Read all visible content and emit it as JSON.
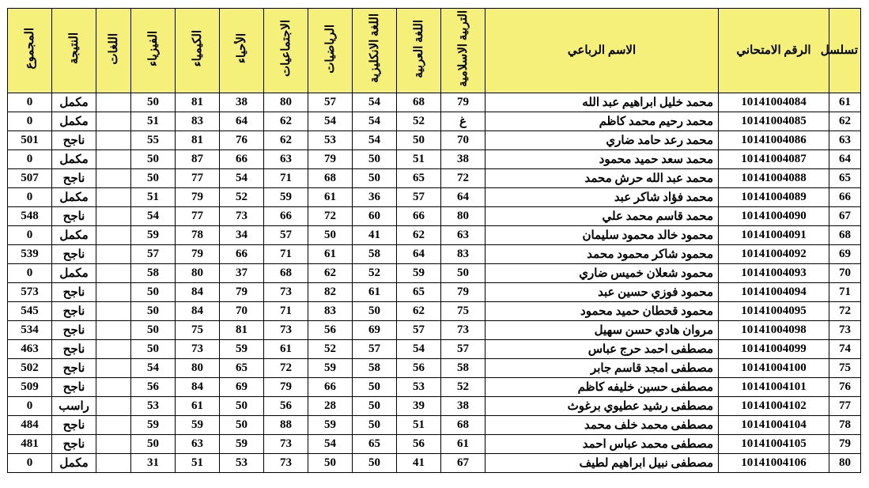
{
  "columns": [
    {
      "key": "seq",
      "label": "تسلسل",
      "vert": false,
      "colclass": "c-seq"
    },
    {
      "key": "exam_no",
      "label": "الرقم الامتحاني",
      "vert": false,
      "colclass": "c-exam"
    },
    {
      "key": "name",
      "label": "الاسم الرباعي",
      "vert": false,
      "colclass": "c-name"
    },
    {
      "key": "islamic",
      "label": "التربية الاسلامية",
      "vert": true,
      "colclass": "c-sub"
    },
    {
      "key": "arabic",
      "label": "اللغة العربية",
      "vert": true,
      "colclass": "c-sub"
    },
    {
      "key": "english",
      "label": "اللغة الانكليزية",
      "vert": true,
      "colclass": "c-sub"
    },
    {
      "key": "math",
      "label": "الرياضيات",
      "vert": true,
      "colclass": "c-sub"
    },
    {
      "key": "social",
      "label": "الاجتماعيات",
      "vert": true,
      "colclass": "c-sub"
    },
    {
      "key": "biology",
      "label": "الأحياء",
      "vert": true,
      "colclass": "c-sub"
    },
    {
      "key": "chemistry",
      "label": "الكيمياء",
      "vert": true,
      "colclass": "c-sub"
    },
    {
      "key": "physics",
      "label": "الفيزياء",
      "vert": true,
      "colclass": "c-sub"
    },
    {
      "key": "langs",
      "label": "اللغات",
      "vert": true,
      "colclass": "c-lang"
    },
    {
      "key": "result",
      "label": "النتيجة",
      "vert": true,
      "colclass": "c-res"
    },
    {
      "key": "total",
      "label": "المجموع",
      "vert": true,
      "colclass": "c-tot"
    }
  ],
  "header_bg": "#f5f07a",
  "border_color": "#000000",
  "font_family": "Times New Roman",
  "cell_fontsize": 15,
  "header_fontsize": 15,
  "rows": [
    {
      "seq": "61",
      "exam_no": "10141004084",
      "name": "محمد خليل ابراهيم عبد الله",
      "islamic": "79",
      "arabic": "68",
      "english": "54",
      "math": "57",
      "social": "80",
      "biology": "38",
      "chemistry": "81",
      "physics": "50",
      "langs": "",
      "result": "مكمل",
      "total": "0"
    },
    {
      "seq": "62",
      "exam_no": "10141004085",
      "name": "محمد رحيم محمد كاظم",
      "islamic": "غ",
      "arabic": "52",
      "english": "54",
      "math": "54",
      "social": "62",
      "biology": "64",
      "chemistry": "83",
      "physics": "51",
      "langs": "",
      "result": "مكمل",
      "total": "0"
    },
    {
      "seq": "63",
      "exam_no": "10141004086",
      "name": "محمد رعد حامد ضاري",
      "islamic": "70",
      "arabic": "50",
      "english": "54",
      "math": "53",
      "social": "62",
      "biology": "76",
      "chemistry": "81",
      "physics": "55",
      "langs": "",
      "result": "ناجح",
      "total": "501"
    },
    {
      "seq": "64",
      "exam_no": "10141004087",
      "name": "محمد سعد حميد محمود",
      "islamic": "38",
      "arabic": "51",
      "english": "50",
      "math": "79",
      "social": "63",
      "biology": "66",
      "chemistry": "87",
      "physics": "50",
      "langs": "",
      "result": "مكمل",
      "total": "0"
    },
    {
      "seq": "65",
      "exam_no": "10141004088",
      "name": "محمد عبد الله حرش محمد",
      "islamic": "72",
      "arabic": "65",
      "english": "50",
      "math": "68",
      "social": "71",
      "biology": "54",
      "chemistry": "77",
      "physics": "50",
      "langs": "",
      "result": "ناجح",
      "total": "507"
    },
    {
      "seq": "66",
      "exam_no": "10141004089",
      "name": "محمد فؤاد شاكر عبد",
      "islamic": "64",
      "arabic": "57",
      "english": "36",
      "math": "61",
      "social": "59",
      "biology": "52",
      "chemistry": "79",
      "physics": "51",
      "langs": "",
      "result": "مكمل",
      "total": "0"
    },
    {
      "seq": "67",
      "exam_no": "10141004090",
      "name": "محمد قاسم محمد علي",
      "islamic": "80",
      "arabic": "66",
      "english": "60",
      "math": "72",
      "social": "66",
      "biology": "73",
      "chemistry": "77",
      "physics": "54",
      "langs": "",
      "result": "ناجح",
      "total": "548"
    },
    {
      "seq": "68",
      "exam_no": "10141004091",
      "name": "محمود خالد محمود سليمان",
      "islamic": "63",
      "arabic": "62",
      "english": "41",
      "math": "50",
      "social": "57",
      "biology": "34",
      "chemistry": "78",
      "physics": "59",
      "langs": "",
      "result": "مكمل",
      "total": "0"
    },
    {
      "seq": "69",
      "exam_no": "10141004092",
      "name": "محمود شاكر محمود محمد",
      "islamic": "83",
      "arabic": "64",
      "english": "58",
      "math": "61",
      "social": "71",
      "biology": "66",
      "chemistry": "79",
      "physics": "57",
      "langs": "",
      "result": "ناجح",
      "total": "539"
    },
    {
      "seq": "70",
      "exam_no": "10141004093",
      "name": "محمود شعلان خميس ضاري",
      "islamic": "50",
      "arabic": "59",
      "english": "52",
      "math": "62",
      "social": "68",
      "biology": "37",
      "chemistry": "80",
      "physics": "58",
      "langs": "",
      "result": "مكمل",
      "total": "0"
    },
    {
      "seq": "71",
      "exam_no": "10141004094",
      "name": "محمود فوزي حسين عبد",
      "islamic": "79",
      "arabic": "65",
      "english": "61",
      "math": "82",
      "social": "73",
      "biology": "79",
      "chemistry": "84",
      "physics": "50",
      "langs": "",
      "result": "ناجح",
      "total": "573"
    },
    {
      "seq": "72",
      "exam_no": "10141004095",
      "name": "محمود قحطان حميد محمود",
      "islamic": "75",
      "arabic": "62",
      "english": "50",
      "math": "83",
      "social": "71",
      "biology": "70",
      "chemistry": "84",
      "physics": "50",
      "langs": "",
      "result": "ناجح",
      "total": "545"
    },
    {
      "seq": "73",
      "exam_no": "10141004098",
      "name": "مروان هادي حسن سهيل",
      "islamic": "73",
      "arabic": "57",
      "english": "69",
      "math": "56",
      "social": "73",
      "biology": "81",
      "chemistry": "75",
      "physics": "50",
      "langs": "",
      "result": "ناجح",
      "total": "534"
    },
    {
      "seq": "74",
      "exam_no": "10141004099",
      "name": "مصطفى احمد حرج عباس",
      "islamic": "57",
      "arabic": "54",
      "english": "57",
      "math": "52",
      "social": "61",
      "biology": "59",
      "chemistry": "73",
      "physics": "50",
      "langs": "",
      "result": "ناجح",
      "total": "463"
    },
    {
      "seq": "75",
      "exam_no": "10141004100",
      "name": "مصطفى امجد قاسم جابر",
      "islamic": "58",
      "arabic": "56",
      "english": "58",
      "math": "59",
      "social": "72",
      "biology": "65",
      "chemistry": "80",
      "physics": "54",
      "langs": "",
      "result": "ناجح",
      "total": "502"
    },
    {
      "seq": "76",
      "exam_no": "10141004101",
      "name": "مصطفى حسين خليفه كاظم",
      "islamic": "52",
      "arabic": "53",
      "english": "50",
      "math": "66",
      "social": "79",
      "biology": "69",
      "chemistry": "84",
      "physics": "56",
      "langs": "",
      "result": "ناجح",
      "total": "509"
    },
    {
      "seq": "77",
      "exam_no": "10141004102",
      "name": "مصطفى رشيد عطيوي برغوث",
      "islamic": "38",
      "arabic": "39",
      "english": "50",
      "math": "28",
      "social": "56",
      "biology": "50",
      "chemistry": "61",
      "physics": "53",
      "langs": "",
      "result": "راسب",
      "total": "0"
    },
    {
      "seq": "78",
      "exam_no": "10141004104",
      "name": "مصطفى محمد خلف محمد",
      "islamic": "68",
      "arabic": "51",
      "english": "50",
      "math": "59",
      "social": "88",
      "biology": "50",
      "chemistry": "59",
      "physics": "59",
      "langs": "",
      "result": "ناجح",
      "total": "484"
    },
    {
      "seq": "79",
      "exam_no": "10141004105",
      "name": "مصطفى محمد عباس احمد",
      "islamic": "61",
      "arabic": "56",
      "english": "65",
      "math": "54",
      "social": "73",
      "biology": "59",
      "chemistry": "63",
      "physics": "50",
      "langs": "",
      "result": "ناجح",
      "total": "481"
    },
    {
      "seq": "80",
      "exam_no": "10141004106",
      "name": "مصطفى نبيل ابراهيم لطيف",
      "islamic": "67",
      "arabic": "41",
      "english": "50",
      "math": "50",
      "social": "73",
      "biology": "53",
      "chemistry": "51",
      "physics": "31",
      "langs": "",
      "result": "مكمل",
      "total": "0"
    }
  ]
}
